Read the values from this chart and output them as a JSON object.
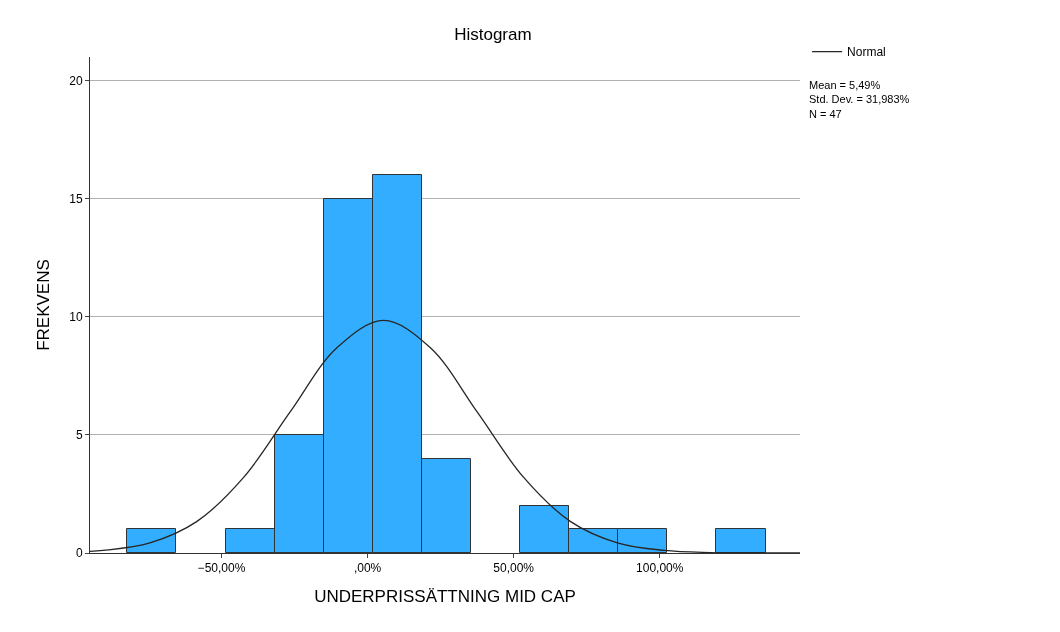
{
  "chart_data": {
    "type": "histogram",
    "title": "Histogram",
    "xlabel": "UNDERPRISSÄTTNING MID CAP",
    "ylabel": "FREKVENS",
    "bins": [
      -82.2,
      -65.4,
      -48.6,
      -31.8,
      -15,
      1.8,
      18.6,
      35.4,
      52.2,
      69,
      85.8,
      102.6,
      119.4,
      136.2
    ],
    "values": [
      1,
      0,
      1,
      5,
      15,
      16,
      4,
      0,
      2,
      1,
      1,
      0,
      1
    ],
    "color": "#33adff",
    "series": [
      {
        "type": "line",
        "name": "Normal",
        "color": "#262626",
        "x": [
          -95,
          -90.5,
          -74.5,
          -58.5,
          -42.5,
          -26.5,
          -10.5,
          5.5,
          21.5,
          37.5,
          53.5,
          69.5,
          85.5,
          101.5,
          117.5,
          133.5,
          148
        ],
        "values": [
          0.07,
          0.11,
          0.43,
          1.33,
          3.19,
          5.97,
          8.69,
          9.85,
          8.69,
          5.97,
          3.19,
          1.33,
          0.43,
          0.11,
          0.02,
          0.0,
          0.0
        ]
      }
    ],
    "xlim": [
      -95,
      148
    ],
    "xticks": [
      {
        "value": -50,
        "label": "−50,00%"
      },
      {
        "value": 0,
        "label": ",00%"
      },
      {
        "value": 50,
        "label": "50,00%"
      },
      {
        "value": 100,
        "label": "100,00%"
      }
    ],
    "ylim": [
      0,
      21
    ],
    "yticks": [
      0,
      5,
      10,
      15,
      20
    ],
    "grid": "y",
    "legend": "top right",
    "annotations": [
      "Mean = 5,49%\nStd. Dev. = 31,983%\nN = 47"
    ]
  }
}
